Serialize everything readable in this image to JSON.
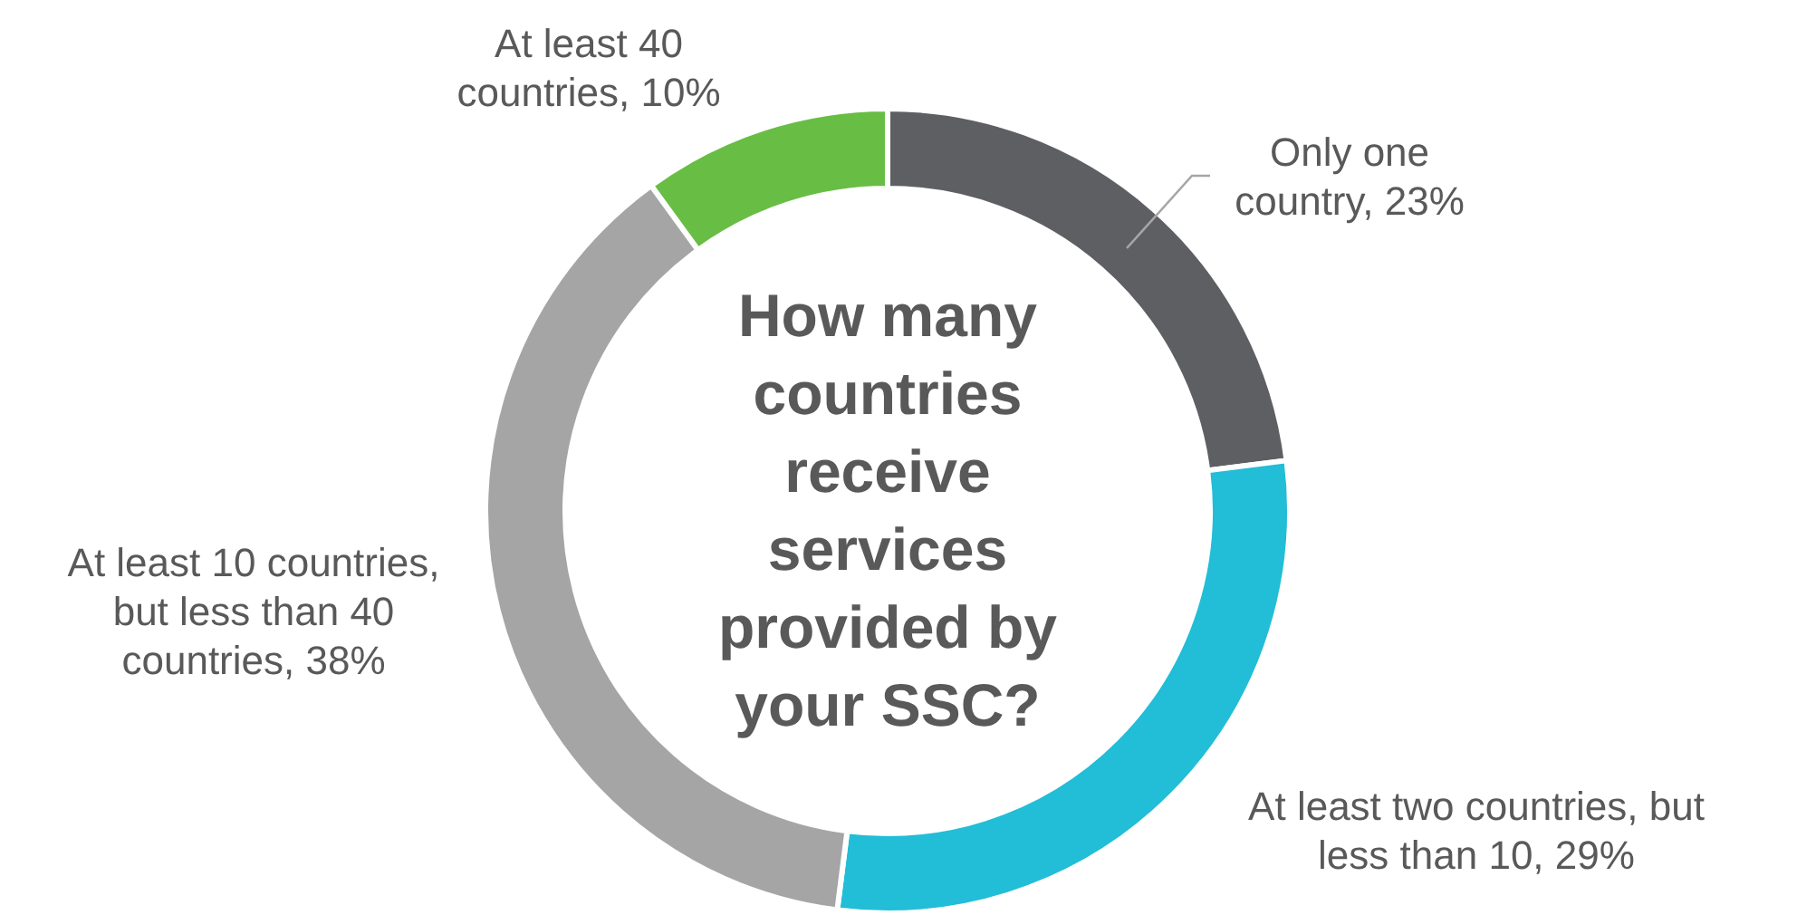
{
  "chart_data": {
    "type": "donut",
    "title": "How many countries receive services provided by your SSC?",
    "categories": [
      "Only one country",
      "At least two countries, but less than 10",
      "At least 10 countries, but less than 40 countries",
      "At least 40 countries"
    ],
    "value_labels": [
      "23%",
      "29%",
      "38%",
      "10%"
    ],
    "values": [
      23,
      29,
      38,
      10
    ],
    "colors": [
      "#5e5f63",
      "#22bdd6",
      "#a5a5a5",
      "#68bd45"
    ],
    "legend": false
  }
}
